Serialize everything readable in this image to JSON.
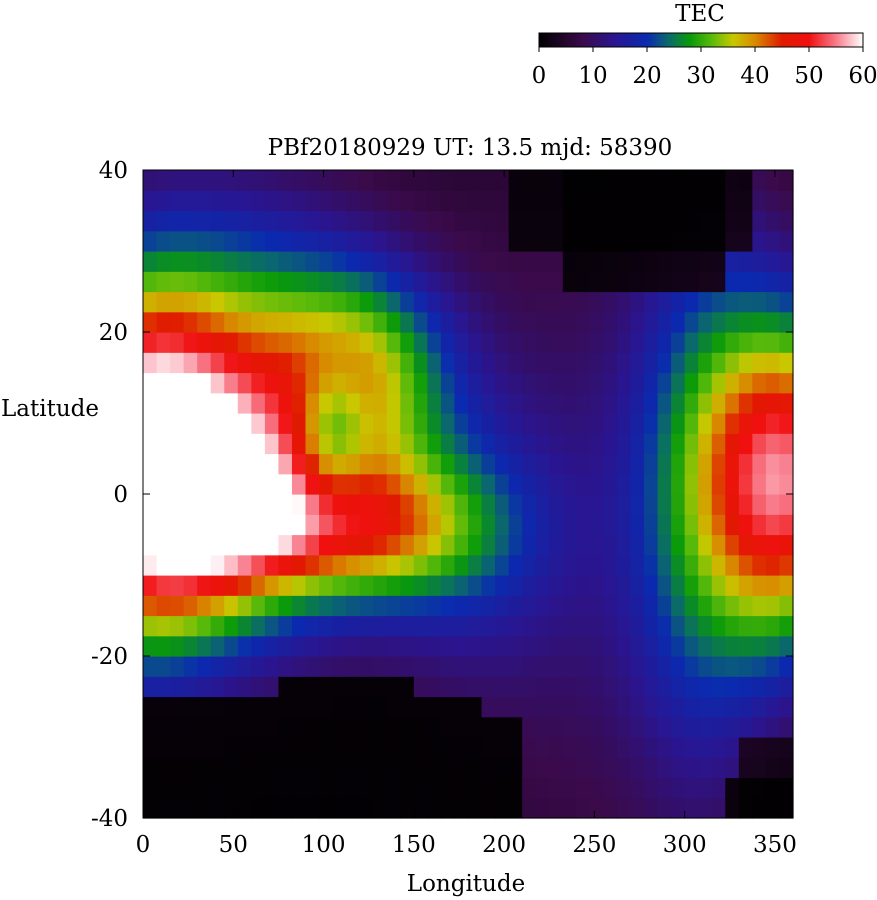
{
  "chart_data": {
    "type": "heatmap",
    "title": "PBf20180929  UT: 13.5  mjd: 58390",
    "xlabel": "Longitude",
    "ylabel": "Latitude",
    "xlim": [
      0,
      360
    ],
    "ylim": [
      -40,
      40
    ],
    "x_ticks": [
      "0",
      "50",
      "100",
      "150",
      "200",
      "250",
      "300",
      "350"
    ],
    "y_ticks": [
      "40",
      "20",
      "0",
      "-20",
      "-40"
    ],
    "colorbar": {
      "label": "TEC",
      "range": [
        0,
        60
      ],
      "ticks": [
        "0",
        "10",
        "20",
        "30",
        "40",
        "50",
        "60"
      ],
      "stops": [
        {
          "v": 0,
          "color": "#000000"
        },
        {
          "v": 8,
          "color": "#3a0a4a"
        },
        {
          "v": 14,
          "color": "#2a1590"
        },
        {
          "v": 20,
          "color": "#0a2ab0"
        },
        {
          "v": 24,
          "color": "#0a6a6a"
        },
        {
          "v": 28,
          "color": "#0a9a0a"
        },
        {
          "v": 32,
          "color": "#5aba0a"
        },
        {
          "v": 36,
          "color": "#c8c800"
        },
        {
          "v": 40,
          "color": "#d88a00"
        },
        {
          "v": 45,
          "color": "#e01a00"
        },
        {
          "v": 50,
          "color": "#f01010"
        },
        {
          "v": 55,
          "color": "#f87a8a"
        },
        {
          "v": 60,
          "color": "#ffffff"
        }
      ]
    },
    "grid": {
      "lon_step": 7.5,
      "lat_step": 2.5,
      "lon_start": 0,
      "lat_start": -40
    }
  }
}
